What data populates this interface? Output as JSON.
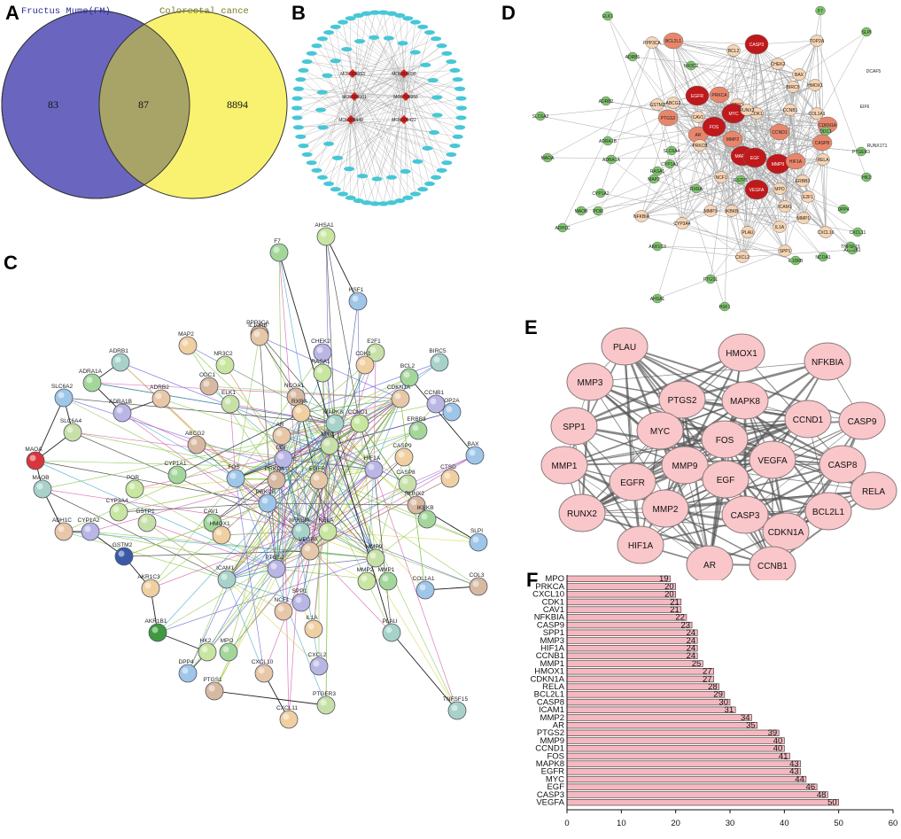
{
  "panel_letters": {
    "a": "A",
    "b": "B",
    "c": "C",
    "d": "D",
    "e": "E",
    "f": "F"
  },
  "venn": {
    "left_label": "Fructus Mume(FM)",
    "right_label": "Colorectal cance",
    "left_only": "83",
    "intersection": "87",
    "right_only": "8894",
    "colors": {
      "left": "#6a66bf",
      "right": "#f8f270",
      "overlap": "#a8a468",
      "left_label": "#2c2c9a",
      "right_label": "#7a7a20"
    }
  },
  "compound_network": {
    "hubs": [
      "MOL000953",
      "MOL000098",
      "MOL000501",
      "MOL000358",
      "MOL000449",
      "MOL000422"
    ],
    "target_count": 87,
    "colors": {
      "hub": "#e0201c",
      "target": "#47c7d6",
      "edge": "#9a9a9a"
    }
  },
  "string_network": {
    "nodes": [
      "AHSA1",
      "F7",
      "HSF1",
      "PPP3CA",
      "IL10RB",
      "CHEK2",
      "E2F1",
      "MAP2",
      "ADRB1",
      "NR3C2",
      "ADRA1A",
      "SLC6A2",
      "ODC1",
      "ADRB2",
      "ADRA1B",
      "SLC6A4",
      "CDK1",
      "BIRC5",
      "RASA1",
      "BCL2",
      "TOP2A",
      "NCOA1",
      "CDKN1A",
      "CCNB1",
      "ELK1",
      "RXRA",
      "MAPK8",
      "CCND1",
      "ERBB3",
      "BAX",
      "ABCG2",
      "AR",
      "EGF",
      "MYC",
      "CASP9",
      "MAOA",
      "POR",
      "CYP1A1",
      "FOS",
      "PRKCA",
      "EGFR",
      "HIF1A",
      "CASP8",
      "CTSD",
      "MAOB",
      "CYP3A4",
      "CAV1",
      "PRKCB",
      "RUNX2",
      "ADH1C",
      "CYP1A2",
      "GSTP1",
      "HMOX1",
      "NFKBIA",
      "RELA",
      "IKBKB",
      "SLPI",
      "GSTM2",
      "VEGFA",
      "PTGS2",
      "MMP9",
      "AKR1C3",
      "ICAM1",
      "MMP2",
      "MMP1",
      "COL1A1",
      "COL3",
      "NCF1",
      "SPP1",
      "AKR1B1",
      "IL1A",
      "PLAU",
      "HK2",
      "MPO",
      "DPP4",
      "PTGS1",
      "CXCL10",
      "CXCL2",
      "PTGER3",
      "CXCL11",
      "TNFSF15"
    ]
  },
  "cytoscape_network": {
    "nodes": [
      "ELK1",
      "F7",
      "SLPI",
      "PPP3CA",
      "BCL2L1",
      "BCL2",
      "CASP3",
      "TOP2A",
      "CHEK2",
      "ADRB1",
      "EGFR",
      "BAX",
      "HMOX1",
      "DCAF5",
      "NR3C2",
      "BIRC5",
      "ADRB2",
      "GSTM2",
      "PRKCA",
      "CTSD",
      "CCNB1",
      "ABCG2",
      "CDK1",
      "COL1A1",
      "PTGS2",
      "MYC",
      "RUNX2",
      "CDKN1A",
      "EIF6",
      "SLC6A2",
      "CAV1",
      "CCND1",
      "ODC1",
      "AR",
      "FOS",
      "CASP8",
      "RUNX1T1",
      "MMP2",
      "ADRA1B",
      "PRKCB",
      "ADRA1A",
      "SLC6A4",
      "RASA1",
      "MAPK8",
      "EGF",
      "MMP9",
      "HIF1A",
      "RELA",
      "PTGER3",
      "CYP1A1",
      "MAOA",
      "NCF1",
      "GSTP1",
      "VEGFA",
      "MPO",
      "ERBB3",
      "HK2",
      "MAP2",
      "RXRA",
      "CYP1A2",
      "ICAM1",
      "E2F1",
      "DPP4",
      "MAOB",
      "POR",
      "MMP3",
      "IKBKB",
      "MMP1",
      "NFKBIA",
      "CYP3A4",
      "CXCL11",
      "AKR1B1",
      "ADH1C",
      "IL1A",
      "SPP1",
      "CXCL10",
      "PLAU",
      "TNFSF15",
      "AKR1C3",
      "CXCL2",
      "IL10RB",
      "NCOA1",
      "PTGS1",
      "AHSA1",
      "HSF1"
    ],
    "colors": {
      "dark": "#c0191c",
      "mid": "#e8866b",
      "light": "#f7d4b4",
      "pale": "#d6ecb9",
      "green": "#7dc46b",
      "edge": "#a8a8a8"
    }
  },
  "core_network": {
    "nodes": [
      "PLAU",
      "HMOX1",
      "NFKBIA",
      "MMP3",
      "PTGS2",
      "MAPK8",
      "CCND1",
      "CASP9",
      "SPP1",
      "MYC",
      "FOS",
      "MMP1",
      "MMP9",
      "VEGFA",
      "CASP8",
      "EGFR",
      "EGF",
      "RELA",
      "MMP2",
      "RUNX2",
      "CASP3",
      "BCL2L1",
      "CDKN1A",
      "HIF1A",
      "AR",
      "CCNB1"
    ],
    "colors": {
      "node_fill": "#f9c6c9",
      "node_stroke": "#8a7a7a",
      "edge": "#555555"
    }
  },
  "chart_data": {
    "type": "bar",
    "orientation": "horizontal",
    "categories": [
      "MPO",
      "PRKCA",
      "CXCL10",
      "CDK1",
      "CAV1",
      "NFKBIA",
      "CASP9",
      "SPP1",
      "MMP3",
      "HIF1A",
      "CCNB1",
      "MMP1",
      "HMOX1",
      "CDKN1A",
      "RELA",
      "BCL2L1",
      "CASP8",
      "ICAM1",
      "MMP2",
      "AR",
      "PTGS2",
      "MMP9",
      "CCND1",
      "FOS",
      "MAPK8",
      "EGFR",
      "MYC",
      "EGF",
      "CASP3",
      "VEGFA"
    ],
    "values": [
      19,
      20,
      20,
      21,
      21,
      22,
      23,
      24,
      24,
      24,
      24,
      25,
      27,
      27,
      28,
      29,
      30,
      31,
      34,
      35,
      39,
      40,
      40,
      41,
      43,
      43,
      44,
      46,
      48,
      50
    ],
    "xlim": [
      0,
      60
    ],
    "xticks": [
      "0",
      "10",
      "20",
      "30",
      "40",
      "50",
      "60"
    ],
    "title": "",
    "xlabel": "",
    "ylabel": "",
    "grid": false,
    "colors": {
      "bar": "#f6b8c0",
      "bar_stroke": "#333333"
    }
  }
}
